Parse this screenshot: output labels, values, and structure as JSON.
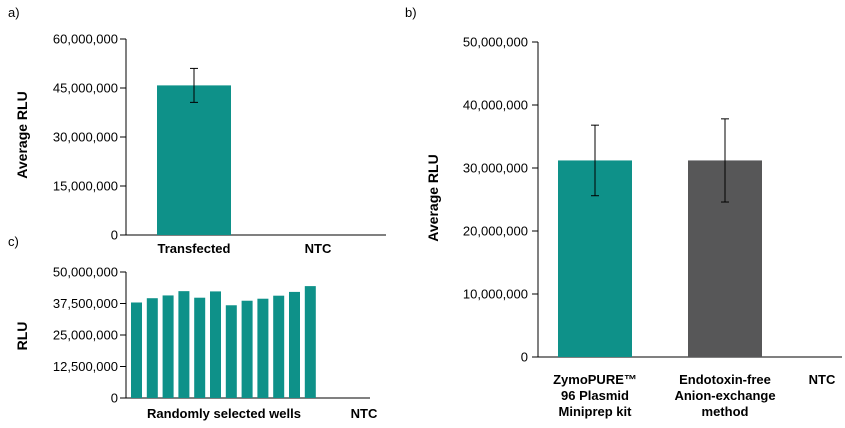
{
  "colors": {
    "teal": "#0e9189",
    "gray": "#575758",
    "axis": "#000000"
  },
  "chart_data": [
    {
      "panel": "a)",
      "type": "bar",
      "ylabel": "Average RLU",
      "ylim": [
        0,
        60000000
      ],
      "yticks": [
        "0",
        "15,000,000",
        "30,000,000",
        "45,000,000",
        "60,000,000"
      ],
      "categories": [
        "Transfected",
        "NTC"
      ],
      "values": [
        45800000,
        0
      ],
      "errors": [
        5200000,
        0
      ],
      "bar_colors": [
        "#0e9189",
        "#0e9189"
      ]
    },
    {
      "panel": "b)",
      "type": "bar",
      "ylabel": "Average RLU",
      "ylim": [
        0,
        50000000
      ],
      "yticks": [
        "0",
        "10,000,000",
        "20,000,000",
        "30,000,000",
        "40,000,000",
        "50,000,000"
      ],
      "categories": [
        [
          "ZymoPURE™",
          "96 Plasmid",
          "Miniprep kit"
        ],
        [
          "Endotoxin-free",
          "Anion-exchange",
          "method"
        ],
        [
          "NTC"
        ]
      ],
      "values": [
        31200000,
        31200000,
        0
      ],
      "errors": [
        5600000,
        6600000,
        0
      ],
      "bar_colors": [
        "#0e9189",
        "#575758",
        "#575758"
      ]
    },
    {
      "panel": "c)",
      "type": "bar",
      "ylabel": "RLU",
      "ylim": [
        0,
        50000000
      ],
      "yticks": [
        "0",
        "12,500,000",
        "25,000,000",
        "37,500,000",
        "50,000,000"
      ],
      "xlabel_groups": [
        "Randomly selected wells",
        "NTC"
      ],
      "values": [
        37900000,
        39600000,
        40700000,
        42400000,
        39800000,
        42300000,
        36800000,
        38600000,
        39400000,
        40600000,
        42100000,
        44400000,
        0
      ],
      "bar_colors": [
        "#0e9189"
      ]
    }
  ]
}
